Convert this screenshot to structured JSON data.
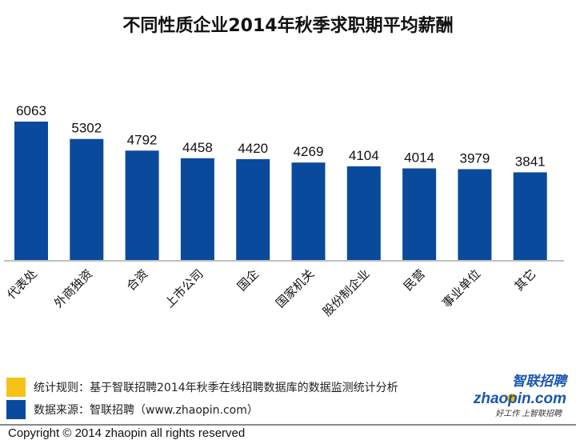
{
  "chart_data": {
    "type": "bar",
    "title": "不同性质企业2014年秋季求职期平均薪酬",
    "categories": [
      "代表处",
      "外商独资",
      "合资",
      "上市公司",
      "国企",
      "国家机关",
      "股份制企业",
      "民营",
      "事业单位",
      "其它"
    ],
    "values": [
      6063,
      5302,
      4792,
      4458,
      4420,
      4269,
      4104,
      4014,
      3979,
      3841
    ],
    "ylim": [
      0,
      6500
    ],
    "grid": false,
    "bar_color": "#0a4a9c",
    "axis_color": "#bfbfbf"
  },
  "legend": {
    "rule": {
      "text": "统计规则：基于智联招聘2014年秋季在线招聘数据库的数据监测统计分析",
      "color": "#f5c21a"
    },
    "source": {
      "text": "数据来源：智联招聘（www.zhaopin.com）",
      "color": "#0a4a9c"
    }
  },
  "logo": {
    "cn": "智联招聘",
    "en": "zhaopin.com",
    "slogan": "好工作 上智联招聘"
  },
  "copyright": "Copyright  ©  2014 zhaopin all rights reserved"
}
